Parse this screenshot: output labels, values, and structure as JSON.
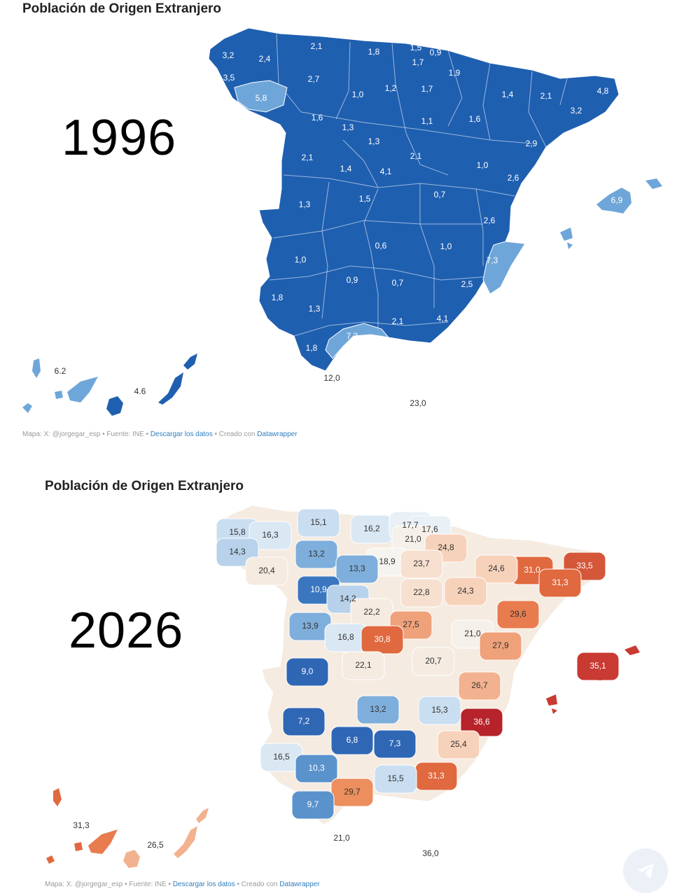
{
  "maps": [
    {
      "title": "Población de Origen Extranjero",
      "year": "1996",
      "regions": [
        {
          "value": "3,2",
          "fill": "#1f5fb0"
        },
        {
          "value": "2,4",
          "fill": "#1f5fb0"
        },
        {
          "value": "2,1",
          "fill": "#1f5fb0"
        },
        {
          "value": "1,8",
          "fill": "#1f5fb0"
        },
        {
          "value": "1,5",
          "fill": "#1f5fb0"
        },
        {
          "value": "0,9",
          "fill": "#1f5fb0"
        },
        {
          "value": "1,7",
          "fill": "#1f5fb0"
        },
        {
          "value": "1,9",
          "fill": "#1f5fb0"
        },
        {
          "value": "3,5",
          "fill": "#1f5fb0"
        },
        {
          "value": "2,7",
          "fill": "#1f5fb0"
        },
        {
          "value": "5,8",
          "fill": "#6fa6d9"
        },
        {
          "value": "1,0",
          "fill": "#1f5fb0"
        },
        {
          "value": "1,2",
          "fill": "#1f5fb0"
        },
        {
          "value": "1,7",
          "fill": "#1f5fb0"
        },
        {
          "value": "1,4",
          "fill": "#1f5fb0"
        },
        {
          "value": "2,1",
          "fill": "#1f5fb0"
        },
        {
          "value": "4,8",
          "fill": "#1f5fb0"
        },
        {
          "value": "3,2",
          "fill": "#1f5fb0"
        },
        {
          "value": "1,6",
          "fill": "#1f5fb0"
        },
        {
          "value": "1,3",
          "fill": "#1f5fb0"
        },
        {
          "value": "1,1",
          "fill": "#1f5fb0"
        },
        {
          "value": "1,6",
          "fill": "#1f5fb0"
        },
        {
          "value": "1,3",
          "fill": "#1f5fb0"
        },
        {
          "value": "2,9",
          "fill": "#1f5fb0"
        },
        {
          "value": "2,1",
          "fill": "#1f5fb0"
        },
        {
          "value": "1,4",
          "fill": "#1f5fb0"
        },
        {
          "value": "4,1",
          "fill": "#1f5fb0"
        },
        {
          "value": "2,1",
          "fill": "#1f5fb0"
        },
        {
          "value": "1,0",
          "fill": "#1f5fb0"
        },
        {
          "value": "2,6",
          "fill": "#1f5fb0"
        },
        {
          "value": "1,5",
          "fill": "#1f5fb0"
        },
        {
          "value": "0,7",
          "fill": "#1f5fb0"
        },
        {
          "value": "1,3",
          "fill": "#1f5fb0"
        },
        {
          "value": "6,9",
          "fill": "#6fa6d9"
        },
        {
          "value": "2,6",
          "fill": "#1f5fb0"
        },
        {
          "value": "0,6",
          "fill": "#1f5fb0"
        },
        {
          "value": "1,0",
          "fill": "#1f5fb0"
        },
        {
          "value": "1,0",
          "fill": "#1f5fb0"
        },
        {
          "value": "7,3",
          "fill": "#6fa6d9"
        },
        {
          "value": "0,9",
          "fill": "#1f5fb0"
        },
        {
          "value": "0,7",
          "fill": "#1f5fb0"
        },
        {
          "value": "2,5",
          "fill": "#1f5fb0"
        },
        {
          "value": "1,8",
          "fill": "#1f5fb0"
        },
        {
          "value": "1,3",
          "fill": "#1f5fb0"
        },
        {
          "value": "2,1",
          "fill": "#1f5fb0"
        },
        {
          "value": "4,1",
          "fill": "#1f5fb0"
        },
        {
          "value": "7,2",
          "fill": "#6fa6d9"
        },
        {
          "value": "1,8",
          "fill": "#1f5fb0"
        }
      ],
      "outside_labels": [
        "12,0",
        "23,0"
      ],
      "islands": [
        {
          "value": "6.2",
          "fill": "#6fa6d9"
        },
        {
          "value": "4.6",
          "fill": "#1f5fb0"
        }
      ],
      "credit": {
        "prefix": "Mapa: X: @jorgegar_esp • Fuente: INE • ",
        "download": "Descargar los datos",
        "middle": " • Creado con ",
        "tool": "Datawrapper"
      }
    },
    {
      "title": "Población de Origen Extranjero",
      "year": "2026",
      "regions": [
        {
          "value": "15,8",
          "fill": "#c9def0"
        },
        {
          "value": "16,3",
          "fill": "#dae8f4"
        },
        {
          "value": "15,1",
          "fill": "#c9def0"
        },
        {
          "value": "16,2",
          "fill": "#dae8f4"
        },
        {
          "value": "17,7",
          "fill": "#e9f0f6"
        },
        {
          "value": "17,6",
          "fill": "#e9f0f6"
        },
        {
          "value": "21,0",
          "fill": "#f5f0ea"
        },
        {
          "value": "14,3",
          "fill": "#b7d2ea"
        },
        {
          "value": "13,2",
          "fill": "#7eaedb"
        },
        {
          "value": "24,8",
          "fill": "#f7d2ba"
        },
        {
          "value": "31,0",
          "fill": "#e0693f"
        },
        {
          "value": "33,5",
          "fill": "#d5573a"
        },
        {
          "value": "20,4",
          "fill": "#f5ebe0"
        },
        {
          "value": "18,9",
          "fill": "#f5f4ef"
        },
        {
          "value": "23,7",
          "fill": "#f7e0d0"
        },
        {
          "value": "13,3",
          "fill": "#7eaedb"
        },
        {
          "value": "24,6",
          "fill": "#f7d2ba"
        },
        {
          "value": "31,3",
          "fill": "#e0693f"
        },
        {
          "value": "10,9",
          "fill": "#3b77c0"
        },
        {
          "value": "14,2",
          "fill": "#b7d2ea"
        },
        {
          "value": "22,8",
          "fill": "#f7e0d0"
        },
        {
          "value": "24,3",
          "fill": "#f7d2ba"
        },
        {
          "value": "22,2",
          "fill": "#f5ebe0"
        },
        {
          "value": "29,6",
          "fill": "#e87c4f"
        },
        {
          "value": "13,9",
          "fill": "#7eaedb"
        },
        {
          "value": "27,5",
          "fill": "#efa17a"
        },
        {
          "value": "16,8",
          "fill": "#dae8f4"
        },
        {
          "value": "30,8",
          "fill": "#e0693f"
        },
        {
          "value": "21,0",
          "fill": "#f5f0ea"
        },
        {
          "value": "27,9",
          "fill": "#efa17a"
        },
        {
          "value": "22,1",
          "fill": "#f5ebe0"
        },
        {
          "value": "20,7",
          "fill": "#f5ebe0"
        },
        {
          "value": "9,0",
          "fill": "#2f67b5"
        },
        {
          "value": "35,1",
          "fill": "#c83a32"
        },
        {
          "value": "26,7",
          "fill": "#f2b28f"
        },
        {
          "value": "13,2",
          "fill": "#7eaedb"
        },
        {
          "value": "15,3",
          "fill": "#c9def0"
        },
        {
          "value": "7,2",
          "fill": "#2f67b5"
        },
        {
          "value": "36,6",
          "fill": "#b7232a"
        },
        {
          "value": "6,8",
          "fill": "#2f67b5"
        },
        {
          "value": "7,3",
          "fill": "#2f67b5"
        },
        {
          "value": "25,4",
          "fill": "#f7d2ba"
        },
        {
          "value": "16,5",
          "fill": "#dae8f4"
        },
        {
          "value": "10,3",
          "fill": "#5a92cc"
        },
        {
          "value": "31,3",
          "fill": "#e0693f"
        },
        {
          "value": "15,5",
          "fill": "#c9def0"
        },
        {
          "value": "29,7",
          "fill": "#ec8e5e"
        },
        {
          "value": "9,7",
          "fill": "#5a92cc"
        }
      ],
      "outside_labels": [
        "21,0",
        "36,0"
      ],
      "islands": [
        {
          "value": "31,3",
          "fill": "#e0693f"
        },
        {
          "value": "26,5",
          "fill": "#f2b28f"
        }
      ],
      "credit": {
        "prefix": "Mapa: X: @jorgegar_esp • Fuente: INE • ",
        "download": "Descargar los datos",
        "middle": " • Creado con ",
        "tool": "Datawrapper"
      }
    }
  ]
}
